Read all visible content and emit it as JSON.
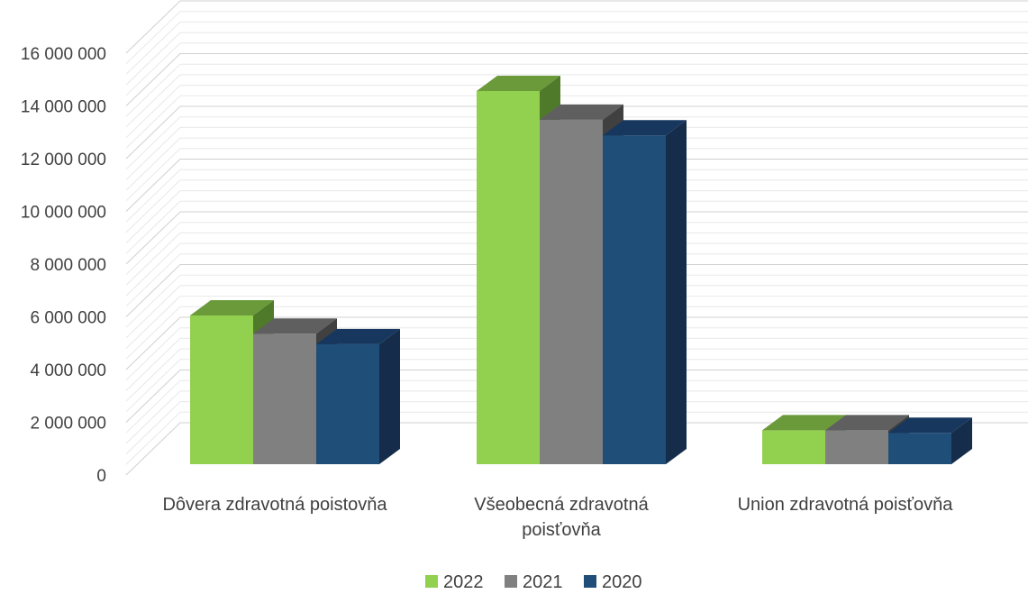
{
  "chart_data": {
    "type": "bar",
    "style": "3d-clustered-column",
    "categories": [
      [
        "Dôvera zdravotná poistovňa"
      ],
      [
        "Všeobecná zdravotná",
        "poisťovňa"
      ],
      [
        "Union zdravotná poisťovňa"
      ]
    ],
    "series": [
      {
        "name": "2022",
        "color": "#92d050",
        "top_color": "#6a9a3a",
        "side_color": "#4f7a2a",
        "values": [
          5700000,
          14300000,
          1300000
        ]
      },
      {
        "name": "2021",
        "color": "#808080",
        "top_color": "#5f5f5f",
        "side_color": "#404040",
        "values": [
          5000000,
          13200000,
          1300000
        ]
      },
      {
        "name": "2020",
        "color": "#1f4e79",
        "top_color": "#17375e",
        "side_color": "#152d4a",
        "values": [
          4600000,
          12600000,
          1200000
        ]
      }
    ],
    "ylim": [
      0,
      16000000
    ],
    "yticks": [
      {
        "value": 0,
        "label": "0"
      },
      {
        "value": 2000000,
        "label": "2 000 000"
      },
      {
        "value": 4000000,
        "label": "4 000 000"
      },
      {
        "value": 6000000,
        "label": "6 000 000"
      },
      {
        "value": 8000000,
        "label": "8 000 000"
      },
      {
        "value": 10000000,
        "label": "10 000 000"
      },
      {
        "value": 12000000,
        "label": "12 000 000"
      },
      {
        "value": 14000000,
        "label": "14 000 000"
      },
      {
        "value": 16000000,
        "label": "16 000 000"
      }
    ],
    "grid": true,
    "legend_position": "bottom"
  }
}
